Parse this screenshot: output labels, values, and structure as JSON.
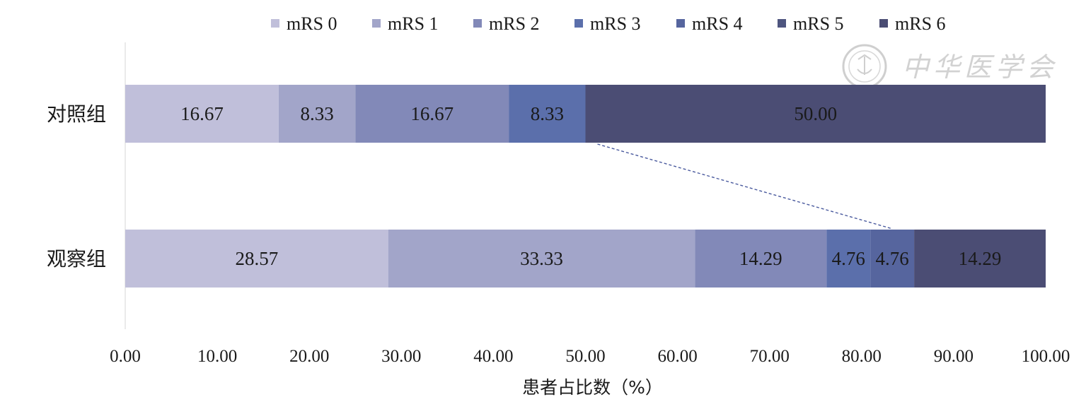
{
  "chart_data": {
    "type": "bar",
    "orientation": "horizontal",
    "stacked": true,
    "categories": [
      "对照组",
      "观察组"
    ],
    "series": [
      {
        "name": "mRS 0",
        "color": "#c0bfda",
        "values": [
          16.67,
          28.57
        ]
      },
      {
        "name": "mRS 1",
        "color": "#a2a5c9",
        "values": [
          8.33,
          33.33
        ]
      },
      {
        "name": "mRS 2",
        "color": "#8289b8",
        "values": [
          16.67,
          14.29
        ]
      },
      {
        "name": "mRS 3",
        "color": "#5b6fab",
        "values": [
          8.33,
          4.76
        ]
      },
      {
        "name": "mRS 4",
        "color": "#56659e",
        "values": [
          0,
          4.76
        ]
      },
      {
        "name": "mRS 5",
        "color": "#4e557f",
        "values": [
          0,
          0
        ]
      },
      {
        "name": "mRS 6",
        "color": "#4b4d74",
        "values": [
          50.0,
          14.29
        ]
      }
    ],
    "data_labels": [
      [
        "16.67",
        "8.33",
        "16.67",
        "8.33",
        "",
        "",
        "50.00"
      ],
      [
        "28.57",
        "33.33",
        "14.29",
        "4.76",
        "4.76",
        "",
        "14.29"
      ]
    ],
    "xlabel": "患者占比数（%）",
    "ylabel": "",
    "xlim": [
      0,
      100
    ],
    "xticks": [
      "0.00",
      "10.00",
      "20.00",
      "30.00",
      "40.00",
      "50.00",
      "60.00",
      "70.00",
      "80.00",
      "90.00",
      "100.00"
    ],
    "grid": false,
    "legend_position": "top",
    "connector": {
      "style": "dashed",
      "color": "#4a5a9e",
      "from": {
        "category": 0,
        "x": 50.0
      },
      "to": {
        "category": 1,
        "x": 82.14
      }
    },
    "watermark": {
      "text": "中华医学会",
      "emblem": "seal-icon"
    }
  }
}
